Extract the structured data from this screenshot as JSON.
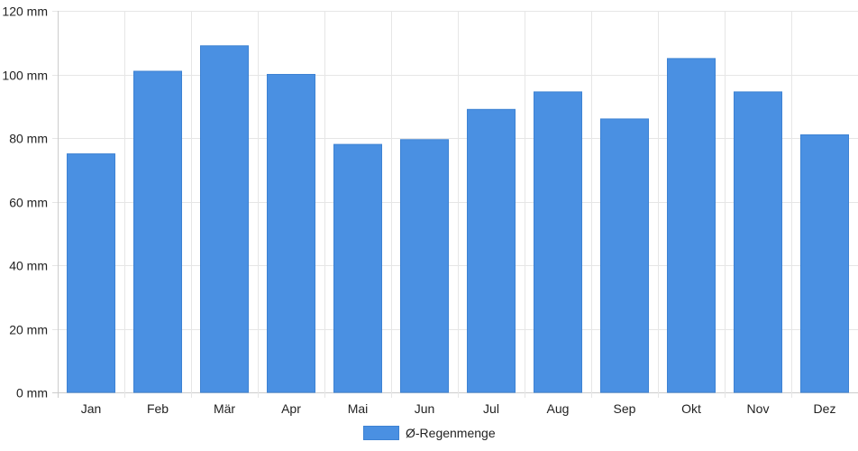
{
  "chart_data": {
    "type": "bar",
    "categories": [
      "Jan",
      "Feb",
      "Mär",
      "Apr",
      "Mai",
      "Jun",
      "Jul",
      "Aug",
      "Sep",
      "Okt",
      "Nov",
      "Dez"
    ],
    "series": [
      {
        "name": "Ø-Regenmenge",
        "values": [
          75,
          101,
          109,
          100,
          78,
          79.5,
          89,
          94.5,
          86,
          105,
          94.5,
          81
        ],
        "color": "#4a90e2"
      }
    ],
    "yticks": [
      "0 mm",
      "20 mm",
      "40 mm",
      "60 mm",
      "80 mm",
      "100 mm",
      "120 mm"
    ],
    "ytick_values": [
      0,
      20,
      40,
      60,
      80,
      100,
      120
    ],
    "ylim": [
      0,
      120
    ],
    "grid": true,
    "legend_position": "bottom-center"
  }
}
